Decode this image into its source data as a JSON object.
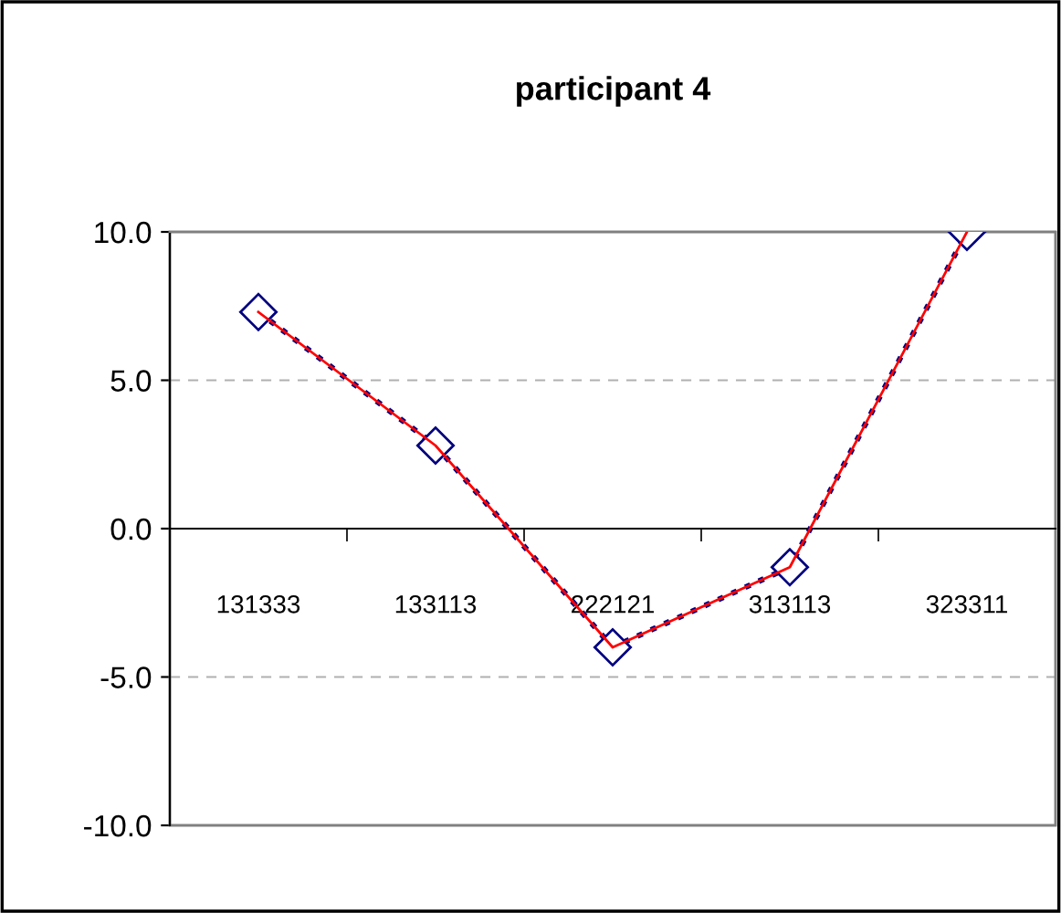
{
  "chart_data": {
    "type": "line",
    "title": "participant 4",
    "categories": [
      "131333",
      "133113",
      "222121",
      "313113",
      "323311"
    ],
    "series": [
      {
        "color": "#000080",
        "values": [
          7.3,
          2.8,
          -4.0,
          -1.3,
          10.0
        ],
        "marker": "diamond",
        "line_style": "dotted"
      },
      {
        "color": "#ff0000",
        "values": [
          7.3,
          2.8,
          -4.0,
          -1.3,
          10.0
        ],
        "marker": "none",
        "line_style": "solid"
      }
    ],
    "ylim": [
      -10,
      10
    ],
    "yticks": [
      {
        "value": -10,
        "label": "-10.0"
      },
      {
        "value": -5,
        "label": "-5.0"
      },
      {
        "value": 0,
        "label": "0.0"
      },
      {
        "value": 5,
        "label": "5.0"
      },
      {
        "value": 10,
        "label": "10.0"
      }
    ],
    "grid": "y",
    "legend": false
  }
}
